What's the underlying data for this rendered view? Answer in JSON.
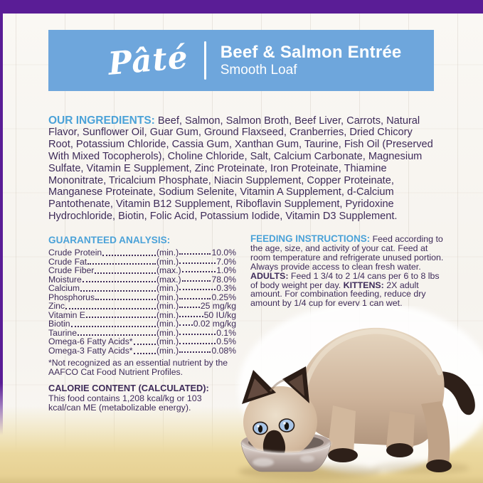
{
  "banner": {
    "script_word": "Pâté",
    "title": "Beef & Salmon Entrée",
    "subtitle": "Smooth Loaf"
  },
  "ingredients": {
    "heading": "OUR INGREDIENTS:",
    "text": "Beef, Salmon, Salmon Broth, Beef Liver, Carrots, Natural Flavor, Sunflower Oil, Guar Gum, Ground Flaxseed, Cranberries, Dried Chicory Root, Potassium Chloride, Cassia Gum, Xanthan Gum, Taurine, Fish Oil (Preserved With Mixed Tocopherols), Choline Chloride, Salt, Calcium Carbonate, Magnesium Sulfate, Vitamin E Supplement, Zinc Proteinate, Iron Proteinate, Thiamine Mononitrate, Tricalcium Phosphate, Niacin Supplement, Copper Proteinate, Manganese Proteinate, Sodium Selenite, Vitamin A Supplement, d-Calcium Pantothenate, Vitamin B12 Supplement, Riboflavin Supplement, Pyridoxine Hydrochloride, Biotin, Folic Acid, Potassium Iodide, Vitamin D3 Supplement."
  },
  "guaranteed_analysis": {
    "heading": "GUARANTEED ANALYSIS:",
    "rows": [
      {
        "label": "Crude Protein",
        "basis": "(min.)",
        "value": "10.0%"
      },
      {
        "label": "Crude Fat",
        "basis": "(min.)",
        "value": "7.0%"
      },
      {
        "label": "Crude Fiber",
        "basis": "(max.)",
        "value": "1.0%"
      },
      {
        "label": "Moisture",
        "basis": "(max.)",
        "value": "78.0%"
      },
      {
        "label": "Calcium",
        "basis": "(min.)",
        "value": "0.3%"
      },
      {
        "label": "Phosphorus",
        "basis": "(min.)",
        "value": "0.25%"
      },
      {
        "label": "Zinc",
        "basis": "(min.)",
        "value": "25 mg/kg"
      },
      {
        "label": "Vitamin E",
        "basis": "(min.)",
        "value": "50 IU/kg"
      },
      {
        "label": "Biotin",
        "basis": "(min.)",
        "value": "0.02 mg/kg"
      },
      {
        "label": "Taurine",
        "basis": "(min.)",
        "value": "0.1%"
      },
      {
        "label": "Omega-6 Fatty Acids*",
        "basis": "(min.)",
        "value": "0.5%"
      },
      {
        "label": "Omega-3 Fatty Acids*",
        "basis": "(min.)",
        "value": "0.08%"
      }
    ],
    "footnote": "*Not recognized as an essential nutrient by the AAFCO Cat Food Nutrient Profiles."
  },
  "calorie_content": {
    "heading": "CALORIE CONTENT (CALCULATED):",
    "text": "This food contains 1,208 kcal/kg or 103 kcal/can ME (metabolizable energy)."
  },
  "feeding_instructions": {
    "heading": "FEEDING INSTRUCTIONS:",
    "intro": "Feed according to the age, size, and activity of your cat. Feed at room temperature and refrigerate unused portion. Always provide access to clean fresh water.",
    "adults_label": "ADULTS:",
    "adults_text": "Feed 1 3/4 to 2 1/4 cans per 6 to 8 lbs of body weight per day.",
    "kittens_label": "KITTENS:",
    "kittens_text": "2X adult amount. For combination feeding, reduce dry amount by 1/4 cup for every 1 can wet."
  },
  "photo": {
    "description": "Siamese kitten eating from a stainless steel bowl on a pale yellow floor"
  },
  "colors": {
    "brand_purple": "#5a1d96",
    "banner_blue": "#6ea6dc",
    "heading_blue": "#4ba2d8",
    "body_text_purple": "#3e2b59",
    "floor_tan": "#ebd89e"
  }
}
